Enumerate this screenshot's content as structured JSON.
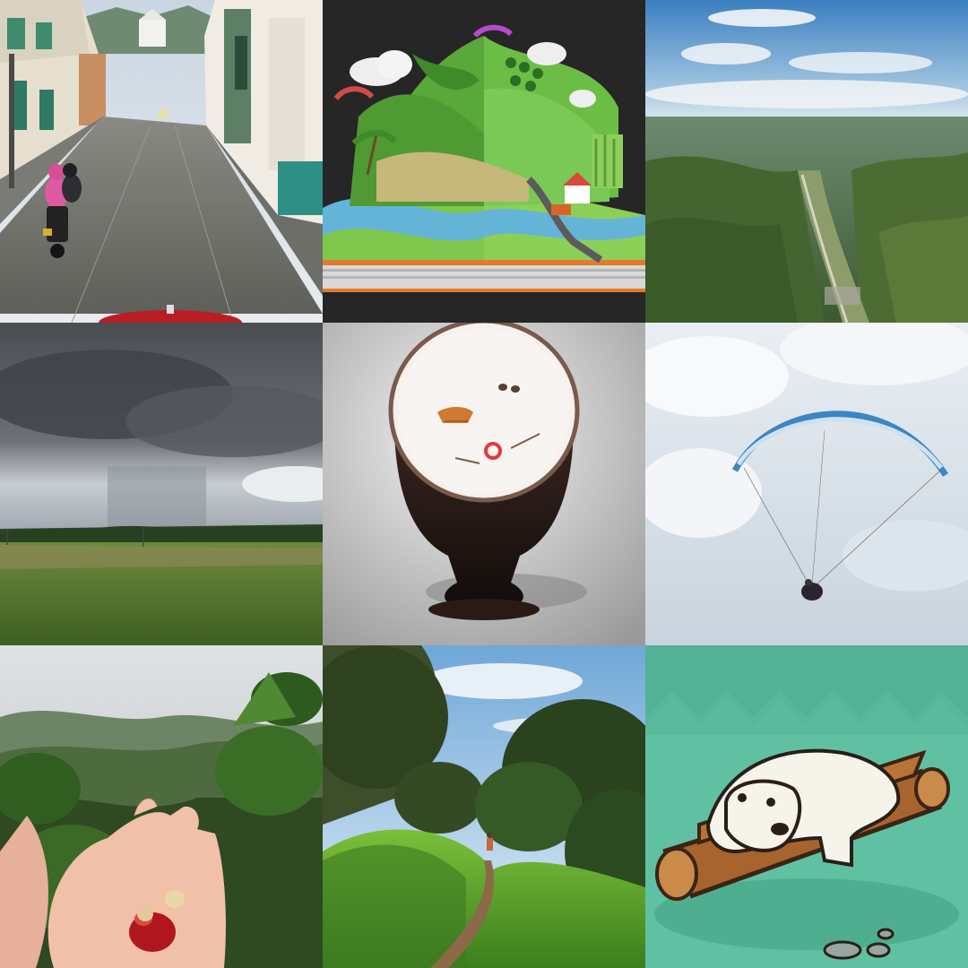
{
  "gallery": {
    "tiles": [
      {
        "subject": "town-street-motorcycle"
      },
      {
        "subject": "popup-book-landscape-illustration"
      },
      {
        "subject": "aerial-valley-view"
      },
      {
        "subject": "storm-cloud-over-field"
      },
      {
        "subject": "coffee-cup-boat-illustration"
      },
      {
        "subject": "paraglider-in-clouds"
      },
      {
        "subject": "coffee-cherries-in-hand"
      },
      {
        "subject": "hillside-trail"
      },
      {
        "subject": "polar-bear-on-logs-illustration"
      }
    ]
  }
}
